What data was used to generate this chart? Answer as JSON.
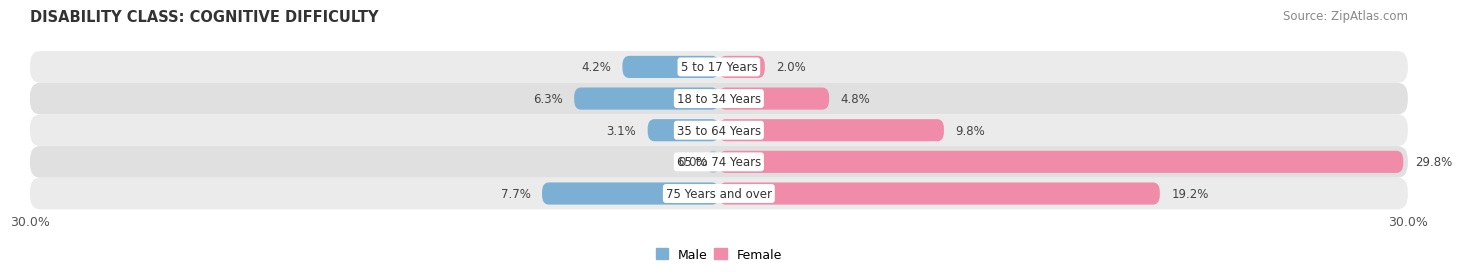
{
  "title": "DISABILITY CLASS: COGNITIVE DIFFICULTY",
  "source": "Source: ZipAtlas.com",
  "categories": [
    "5 to 17 Years",
    "18 to 34 Years",
    "35 to 64 Years",
    "65 to 74 Years",
    "75 Years and over"
  ],
  "male_values": [
    4.2,
    6.3,
    3.1,
    0.0,
    7.7
  ],
  "female_values": [
    2.0,
    4.8,
    9.8,
    29.8,
    19.2
  ],
  "male_color": "#7bafd4",
  "female_color": "#f08caa",
  "row_bg_colors": [
    "#e8e8e8",
    "#d8d8d8"
  ],
  "xlim": 30.0,
  "title_fontsize": 10.5,
  "label_fontsize": 8.5,
  "tick_fontsize": 9,
  "source_fontsize": 8.5,
  "background_color": "#ffffff"
}
